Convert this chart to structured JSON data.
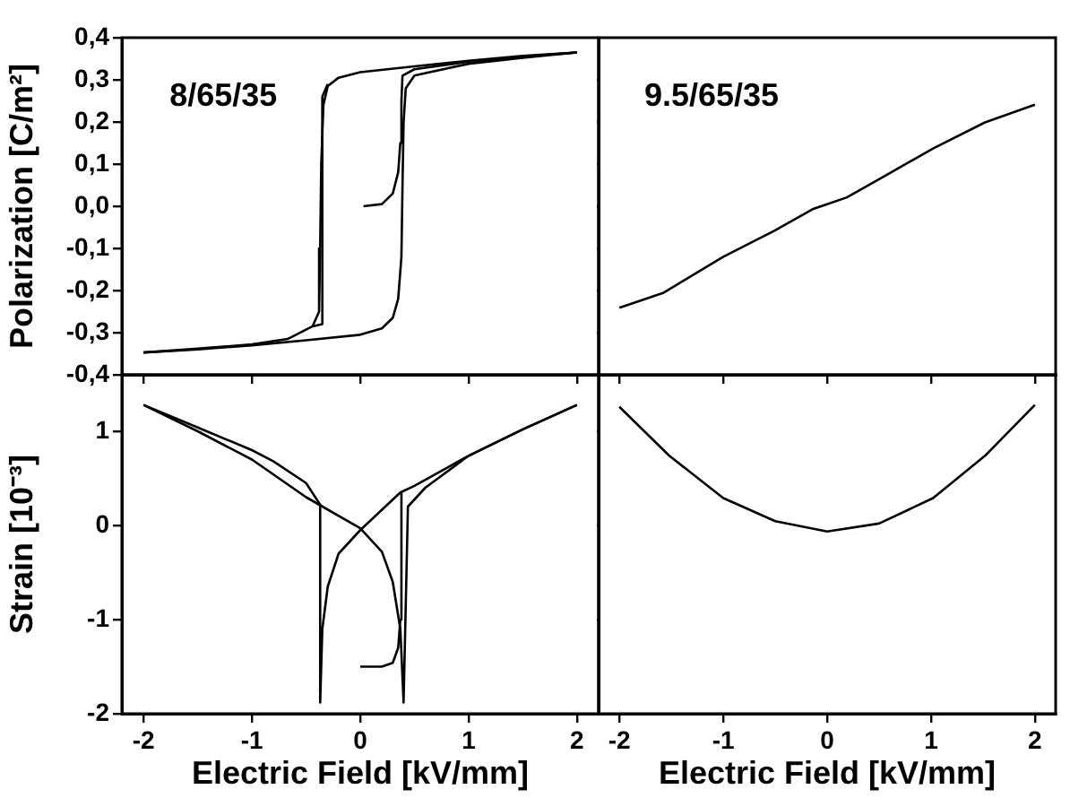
{
  "chart_data": [
    {
      "type": "line",
      "ylabel": "Polarization [C/m²]",
      "annotations": [
        "8/65/35"
      ],
      "xlim": [
        -2.2,
        2.2
      ],
      "ylim": [
        -0.4,
        0.4
      ],
      "xticks": [
        -2,
        -1,
        0,
        1,
        2
      ],
      "yticks": [
        {
          "value": -0.4,
          "label": "-0,4"
        },
        {
          "value": -0.3,
          "label": "-0,3"
        },
        {
          "value": -0.2,
          "label": "-0,2"
        },
        {
          "value": -0.1,
          "label": "-0,1"
        },
        {
          "value": 0,
          "label": "0,0"
        },
        {
          "value": 0.1,
          "label": "0,1"
        },
        {
          "value": 0.2,
          "label": "0,2"
        },
        {
          "value": 0.3,
          "label": "0,3"
        },
        {
          "value": 0.4,
          "label": "0,4"
        }
      ],
      "tick_labels": "y",
      "grid": false,
      "marker": "none",
      "series": [
        {
          "color": "#000000",
          "x": [
            0.03,
            0.2,
            0.3,
            0.35,
            0.37,
            0.38,
            0.39,
            0.5,
            1.0,
            1.5,
            2.0
          ],
          "values": [
            0,
            0.005,
            0.03,
            0.08,
            0.15,
            0.25,
            0.31,
            0.325,
            0.343,
            0.355,
            0.365
          ]
        },
        {
          "color": "#000000",
          "x": [
            2.0,
            1.5,
            1.0,
            0.5,
            0.0,
            -0.2,
            -0.3,
            -0.34,
            -0.36,
            -0.37,
            -0.38,
            -0.44,
            -0.67,
            -1.0,
            -1.5,
            -2.0
          ],
          "values": [
            0.365,
            0.357,
            0.345,
            0.332,
            0.318,
            0.305,
            0.285,
            0.24,
            0.1,
            -0.1,
            -0.25,
            -0.285,
            -0.315,
            -0.328,
            -0.338,
            -0.347
          ]
        },
        {
          "color": "#000000",
          "x": [
            -2.0,
            -1.5,
            -1.0,
            -0.5,
            0.0,
            0.2,
            0.3,
            0.35,
            0.38,
            0.39,
            0.4,
            0.42,
            0.5,
            1.0,
            1.5,
            2.0
          ],
          "values": [
            -0.347,
            -0.34,
            -0.33,
            -0.318,
            -0.305,
            -0.29,
            -0.265,
            -0.22,
            -0.12,
            0.05,
            0.2,
            0.28,
            0.31,
            0.338,
            0.352,
            0.365
          ]
        },
        {
          "color": "#000000",
          "x": [
            -0.44,
            -0.35,
            -0.35,
            -0.3
          ],
          "values": [
            -0.285,
            -0.28,
            0.26,
            0.29
          ]
        }
      ]
    },
    {
      "type": "line",
      "annotations": [
        "9.5/65/35"
      ],
      "xlim": [
        -2.2,
        2.2
      ],
      "ylim": [
        -0.4,
        0.4
      ],
      "xticks": [
        -2,
        -1,
        0,
        1,
        2
      ],
      "yticks": [
        -0.4,
        -0.3,
        -0.2,
        -0.1,
        0,
        0.1,
        0.2,
        0.3,
        0.4
      ],
      "tick_labels": false,
      "grid": false,
      "marker": "none",
      "series": [
        {
          "color": "#000000",
          "x": [
            -2,
            -1.58,
            -1,
            -0.5,
            -0.14,
            0,
            0.19,
            0.5,
            1.02,
            1.52,
            2
          ],
          "values": [
            -0.241,
            -0.206,
            -0.12,
            -0.057,
            -0.007,
            0.005,
            0.021,
            0.064,
            0.137,
            0.199,
            0.241
          ]
        }
      ]
    },
    {
      "type": "line",
      "xlabel": "Electric Field [kV/mm]",
      "ylabel": "Strain [10⁻³]",
      "xlim": [
        -2.2,
        2.2
      ],
      "ylim": [
        -2,
        1.6
      ],
      "xticks": [
        -2,
        -1,
        0,
        1,
        2
      ],
      "yticks": [
        -2,
        -1,
        0,
        1
      ],
      "grid": false,
      "marker": "none",
      "series": [
        {
          "color": "#000000",
          "x": [
            0.0,
            0.2,
            0.3,
            0.35,
            0.37,
            0.38
          ],
          "values": [
            -1.5,
            -1.5,
            -1.46,
            -1.3,
            -1.0,
            0.35
          ]
        },
        {
          "color": "#000000",
          "x": [
            2,
            1.5,
            1,
            0.5,
            0.37,
            0,
            -0.2,
            -0.3,
            -0.35,
            -0.37,
            -0.37,
            -0.5,
            -0.8,
            -1,
            -1.5,
            -2
          ],
          "values": [
            1.28,
            1.02,
            0.74,
            0.42,
            0.35,
            -0.05,
            -0.3,
            -0.65,
            -1.1,
            -1.88,
            0.22,
            0.45,
            0.68,
            0.8,
            1.04,
            1.28
          ]
        },
        {
          "color": "#000000",
          "x": [
            -2,
            -1.5,
            -1,
            -0.5,
            0,
            0.2,
            0.3,
            0.37,
            0.4,
            0.44,
            0.6,
            1,
            1.5,
            2
          ],
          "values": [
            1.28,
            1.0,
            0.7,
            0.3,
            -0.03,
            -0.28,
            -0.6,
            -1.1,
            -1.88,
            0.2,
            0.4,
            0.74,
            1.02,
            1.28
          ]
        }
      ]
    },
    {
      "type": "line",
      "xlabel": "Electric Field [kV/mm]",
      "xlim": [
        -2.2,
        2.2
      ],
      "ylim": [
        -2,
        1.6
      ],
      "xticks": [
        -2,
        -1,
        0,
        1,
        2
      ],
      "yticks": [
        -2,
        -1,
        0,
        1
      ],
      "tick_labels": "x",
      "grid": false,
      "marker": "none",
      "series": [
        {
          "color": "#000000",
          "x": [
            -2,
            -1.52,
            -1,
            -0.5,
            0,
            0.5,
            1.02,
            1.52,
            2
          ],
          "values": [
            1.26,
            0.74,
            0.29,
            0.045,
            -0.065,
            0.02,
            0.29,
            0.74,
            1.28
          ]
        }
      ]
    }
  ]
}
